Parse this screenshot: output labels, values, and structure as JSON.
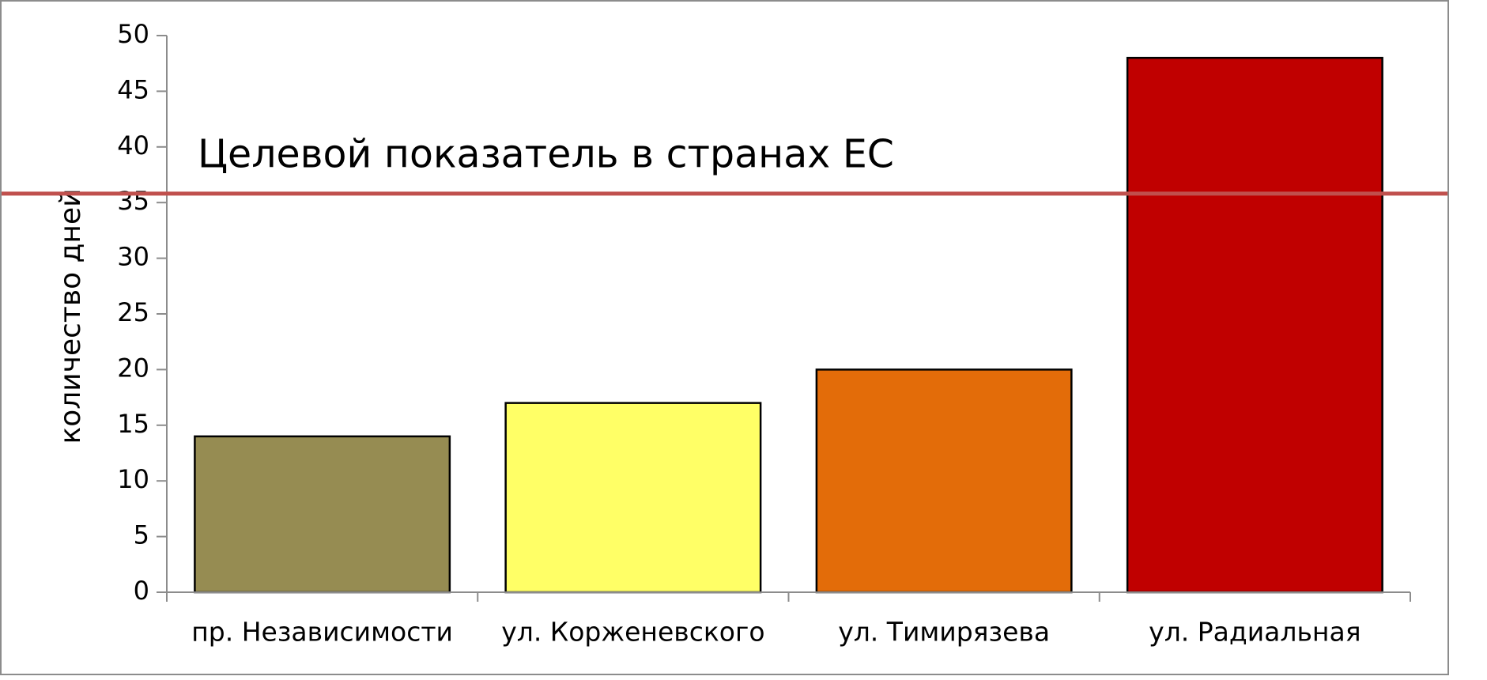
{
  "chart_data": {
    "type": "bar",
    "y_label": "количество дней",
    "categories": [
      "пр. Независимости",
      "ул. Корженевского",
      "ул. Тимирязева",
      "ул. Радиальная"
    ],
    "values": [
      14,
      17,
      20,
      48
    ],
    "colors": [
      "#968c52",
      "#ffff66",
      "#e36c09",
      "#c00000"
    ],
    "ylim": [
      0,
      50
    ],
    "yticks": [
      0,
      5,
      10,
      15,
      20,
      25,
      30,
      35,
      40,
      45,
      50
    ],
    "target_line": {
      "label": "Целевой показатель в странах ЕС",
      "value": 35.8,
      "color": "#c0504d"
    }
  }
}
